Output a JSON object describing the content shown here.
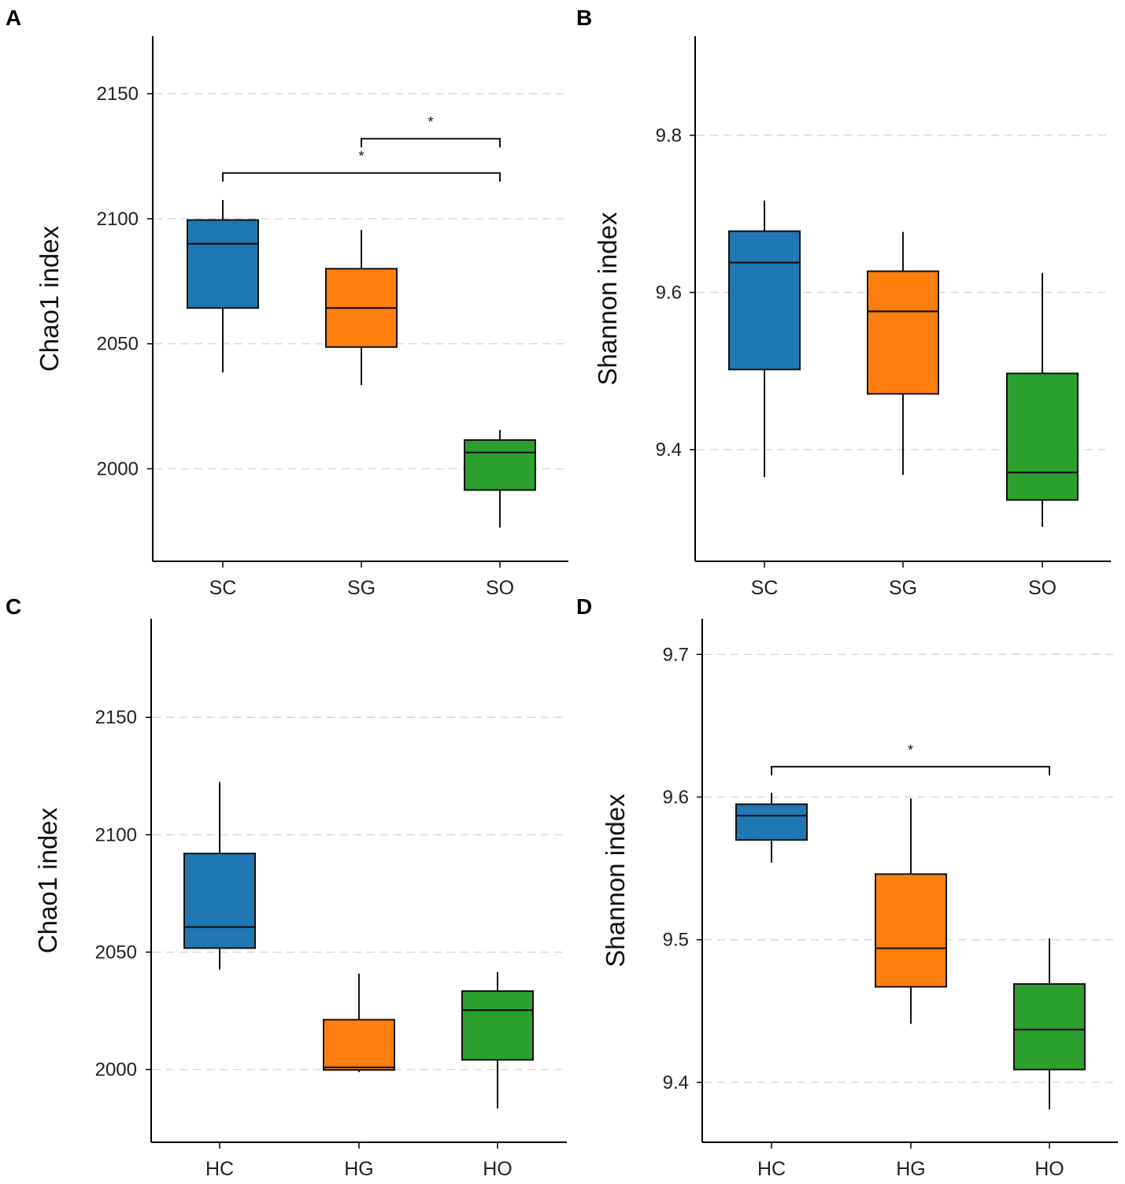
{
  "figure": {
    "background": "#ffffff"
  },
  "colors": {
    "SC": "#1f77b4",
    "SG": "#ff7f0e",
    "SO": "#2ca02c",
    "HC": "#1f77b4",
    "HG": "#ff7f0e",
    "HO": "#2ca02c",
    "grid": "#d9d9d9",
    "axis": "#000000"
  },
  "chart_data": [
    {
      "panel": "A",
      "type": "box",
      "ylabel": "Chao1 index",
      "xlabel": "",
      "ylim": [
        1963,
        2173
      ],
      "yticks": [
        2000,
        2050,
        2100,
        2150
      ],
      "ytick_labels": [
        "2000",
        "2050",
        "2100",
        "2150"
      ],
      "grid": true,
      "categories": [
        "SC",
        "SG",
        "SO"
      ],
      "boxes": [
        {
          "name": "SC",
          "min": 2038.5,
          "q1": 2064.3,
          "median": 2090.0,
          "q3": 2099.5,
          "max": 2107.5
        },
        {
          "name": "SG",
          "min": 2033.5,
          "q1": 2048.7,
          "median": 2064.3,
          "q3": 2080.0,
          "max": 2095.5
        },
        {
          "name": "SO",
          "min": 1976.5,
          "q1": 1991.5,
          "median": 2006.5,
          "q3": 2011.5,
          "max": 2015.5
        }
      ],
      "significance": [
        {
          "from": "SG",
          "to": "SO",
          "y": 2132.0,
          "label": "*"
        },
        {
          "from": "SC",
          "to": "SO",
          "y": 2118.3,
          "label": "*"
        }
      ]
    },
    {
      "panel": "B",
      "type": "box",
      "ylabel": "Shannon index",
      "xlabel": "",
      "ylim": [
        9.258,
        9.926
      ],
      "yticks": [
        9.4,
        9.6,
        9.8
      ],
      "ytick_labels": [
        "9.4",
        "9.6",
        "9.8"
      ],
      "grid": true,
      "categories": [
        "SC",
        "SG",
        "SO"
      ],
      "boxes": [
        {
          "name": "SC",
          "min": 9.365,
          "q1": 9.502,
          "median": 9.638,
          "q3": 9.678,
          "max": 9.717
        },
        {
          "name": "SG",
          "min": 9.368,
          "q1": 9.471,
          "median": 9.576,
          "q3": 9.627,
          "max": 9.677
        },
        {
          "name": "SO",
          "min": 9.302,
          "q1": 9.336,
          "median": 9.371,
          "q3": 9.497,
          "max": 9.625
        }
      ],
      "significance": []
    },
    {
      "panel": "C",
      "type": "box",
      "ylabel": "Chao1 index",
      "xlabel": "",
      "ylim": [
        1969,
        2192
      ],
      "yticks": [
        2000,
        2050,
        2100,
        2150
      ],
      "ytick_labels": [
        "2000",
        "2050",
        "2100",
        "2150"
      ],
      "grid": true,
      "categories": [
        "HC",
        "HG",
        "HO"
      ],
      "boxes": [
        {
          "name": "HC",
          "min": 2042.5,
          "q1": 2051.7,
          "median": 2060.7,
          "q3": 2092.0,
          "max": 2122.5
        },
        {
          "name": "HG",
          "min": 1998.9,
          "q1": 1999.8,
          "median": 2000.9,
          "q3": 2021.2,
          "max": 2040.8
        },
        {
          "name": "HO",
          "min": 1983.4,
          "q1": 2004.1,
          "median": 2025.3,
          "q3": 2033.4,
          "max": 2041.5
        }
      ],
      "significance": []
    },
    {
      "panel": "D",
      "type": "box",
      "ylabel": "Shannon index",
      "xlabel": "",
      "ylim": [
        9.358,
        9.725
      ],
      "yticks": [
        9.4,
        9.5,
        9.6,
        9.7
      ],
      "ytick_labels": [
        "9.4",
        "9.5",
        "9.6",
        "9.7"
      ],
      "grid": true,
      "categories": [
        "HC",
        "HG",
        "HO"
      ],
      "boxes": [
        {
          "name": "HC",
          "min": 9.554,
          "q1": 9.57,
          "median": 9.587,
          "q3": 9.595,
          "max": 9.603
        },
        {
          "name": "HG",
          "min": 9.441,
          "q1": 9.467,
          "median": 9.494,
          "q3": 9.546,
          "max": 9.599
        },
        {
          "name": "HO",
          "min": 9.381,
          "q1": 9.409,
          "median": 9.437,
          "q3": 9.469,
          "max": 9.501
        }
      ],
      "significance": [
        {
          "from": "HC",
          "to": "HO",
          "y": 9.6213,
          "label": "*"
        }
      ]
    }
  ]
}
